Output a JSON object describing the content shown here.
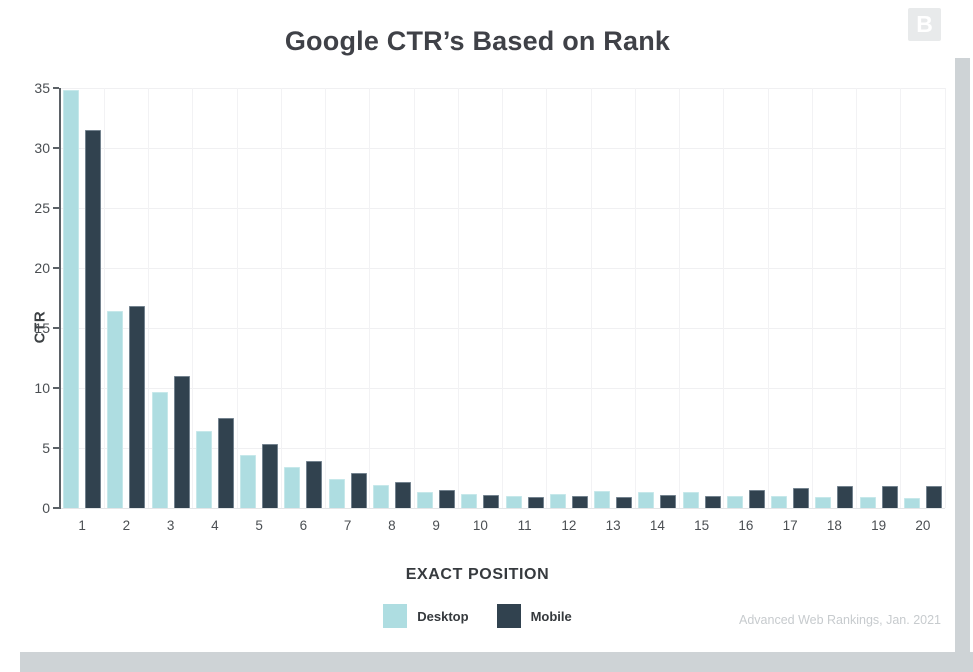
{
  "logo": {
    "letter": "B"
  },
  "attribution": "Advanced Web Rankings, Jan. 2021",
  "chart_data": {
    "type": "bar",
    "title": "Google CTR’s Based on Rank",
    "xlabel": "EXACT POSITION",
    "ylabel": "CTR",
    "categories": [
      "1",
      "2",
      "3",
      "4",
      "5",
      "6",
      "7",
      "8",
      "9",
      "10",
      "11",
      "12",
      "13",
      "14",
      "15",
      "16",
      "17",
      "18",
      "19",
      "20"
    ],
    "series": [
      {
        "name": "Desktop",
        "color": "#aedde1",
        "values": [
          34.8,
          16.4,
          9.7,
          6.4,
          4.4,
          3.4,
          2.4,
          1.9,
          1.3,
          1.2,
          1.0,
          1.2,
          1.4,
          1.3,
          1.3,
          1.0,
          1.0,
          0.9,
          0.9,
          0.8
        ]
      },
      {
        "name": "Mobile",
        "color": "#31424f",
        "values": [
          31.5,
          16.8,
          11.0,
          7.5,
          5.3,
          3.9,
          2.9,
          2.2,
          1.5,
          1.1,
          0.9,
          1.0,
          0.9,
          1.1,
          1.0,
          1.5,
          1.7,
          1.8,
          1.8,
          1.8
        ]
      }
    ],
    "ylim": [
      0,
      35
    ],
    "yticks": [
      0,
      5,
      10,
      15,
      20,
      25,
      30,
      35
    ],
    "grid": true,
    "legend_position": "bottom",
    "source_note": "Advanced Web Rankings, Jan. 2021"
  },
  "colors": {
    "desktop": "#aedde1",
    "mobile": "#31424f",
    "background": "#ffffff",
    "page_shadow": "#ced3d6",
    "grid": "#f0f0f2",
    "axis": "#5b6166",
    "title_text": "#3f4147",
    "tick_text": "#4a4e52",
    "attribution_text": "#c7cbce",
    "logo_bg": "#e8eaeb"
  }
}
